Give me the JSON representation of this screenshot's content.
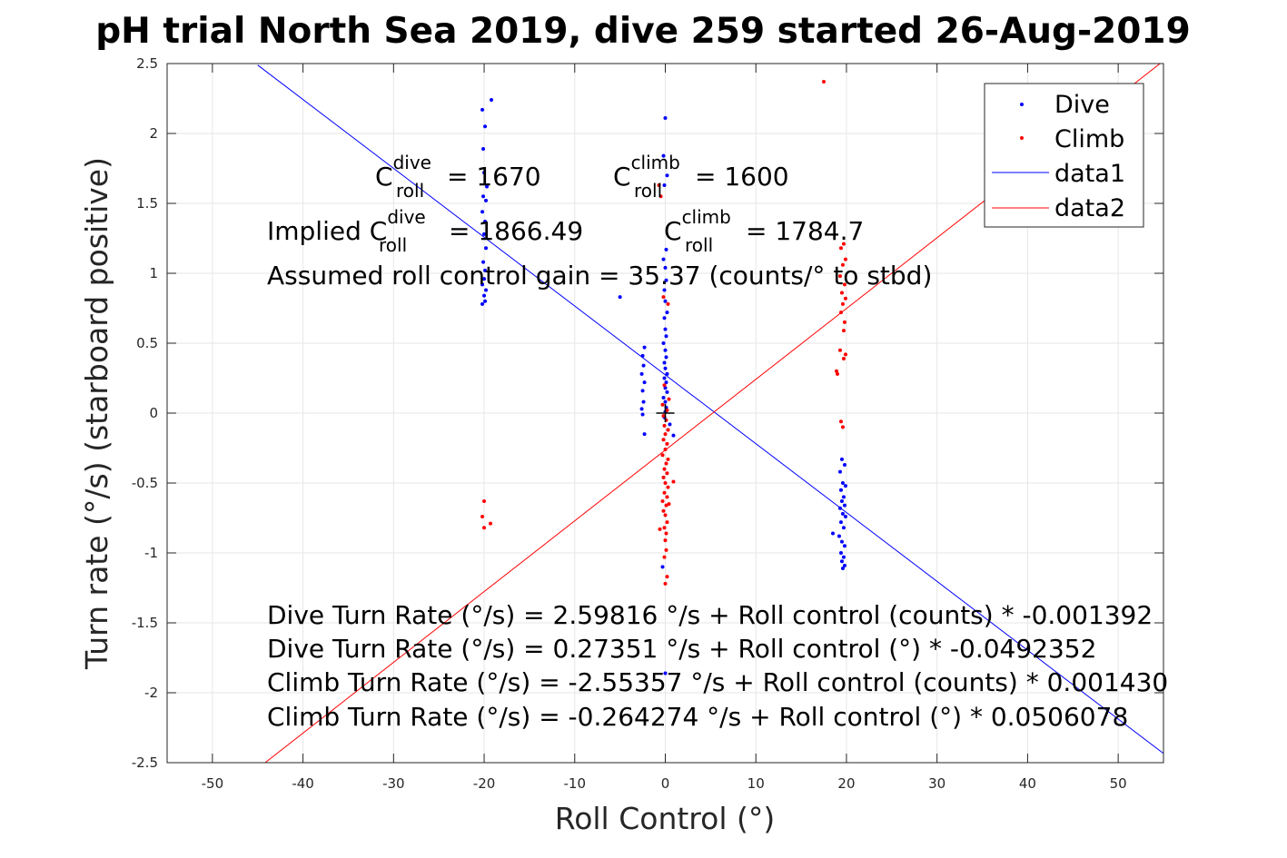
{
  "chart_data": {
    "type": "scatter",
    "title": "pH trial North Sea 2019, dive 259 started 26-Aug-2019",
    "xlabel": "Roll Control (°)",
    "ylabel": "Turn rate (°/s) (starboard positive)",
    "xlim": [
      -55,
      55
    ],
    "ylim": [
      -2.5,
      2.5
    ],
    "xticks": [
      -50,
      -40,
      -30,
      -20,
      -10,
      0,
      10,
      20,
      30,
      40,
      50
    ],
    "xtick_labels": [
      "-50",
      "-40",
      "-30",
      "-20",
      "-10",
      "0",
      "10",
      "20",
      "30",
      "40",
      "50"
    ],
    "yticks": [
      -2.5,
      -2,
      -1.5,
      -1,
      -0.5,
      0,
      0.5,
      1,
      1.5,
      2,
      2.5
    ],
    "ytick_labels": [
      "-2.5",
      "-2",
      "-1.5",
      "-1",
      "-0.5",
      "0",
      "0.5",
      "1",
      "1.5",
      "2",
      "2.5"
    ],
    "grid": true,
    "legend_position": "top-right",
    "legend": [
      "Dive",
      "Climb",
      "data1",
      "data2"
    ],
    "series": [
      {
        "name": "Dive",
        "color": "#0000ff",
        "marker": "dot",
        "points": [
          [
            -20.2,
            2.17
          ],
          [
            -19.9,
            2.05
          ],
          [
            -20.1,
            1.89
          ],
          [
            -20.0,
            1.72
          ],
          [
            -19.7,
            1.62
          ],
          [
            -20.1,
            1.55
          ],
          [
            -19.8,
            1.52
          ],
          [
            -20.2,
            1.44
          ],
          [
            -19.9,
            1.37
          ],
          [
            -20.0,
            1.28
          ],
          [
            -19.8,
            1.18
          ],
          [
            -20.1,
            1.08
          ],
          [
            -19.9,
            1.02
          ],
          [
            -20.0,
            0.96
          ],
          [
            -20.2,
            0.92
          ],
          [
            -19.8,
            0.88
          ],
          [
            -20.0,
            0.84
          ],
          [
            -19.9,
            0.8
          ],
          [
            -20.2,
            0.78
          ],
          [
            -19.2,
            2.24
          ],
          [
            -5.0,
            0.83
          ],
          [
            -2.3,
            0.47
          ],
          [
            -2.5,
            0.41
          ],
          [
            -2.4,
            0.34
          ],
          [
            -2.6,
            0.28
          ],
          [
            -2.3,
            0.22
          ],
          [
            -2.5,
            0.16
          ],
          [
            -2.4,
            0.08
          ],
          [
            -2.6,
            0.03
          ],
          [
            -2.5,
            -0.01
          ],
          [
            -2.3,
            -0.15
          ],
          [
            0.0,
            2.11
          ],
          [
            -0.2,
            1.84
          ],
          [
            0.2,
            1.7
          ],
          [
            -0.1,
            1.63
          ],
          [
            0.1,
            1.17
          ],
          [
            -0.2,
            1.1
          ],
          [
            0.0,
            1.04
          ],
          [
            0.1,
            0.95
          ],
          [
            -0.1,
            0.88
          ],
          [
            0.0,
            0.8
          ],
          [
            0.2,
            0.72
          ],
          [
            -0.1,
            0.68
          ],
          [
            0.0,
            0.6
          ],
          [
            0.1,
            0.55
          ],
          [
            -0.2,
            0.5
          ],
          [
            0.0,
            0.45
          ],
          [
            0.1,
            0.4
          ],
          [
            -0.1,
            0.36
          ],
          [
            0.0,
            0.32
          ],
          [
            0.2,
            0.28
          ],
          [
            -0.1,
            0.25
          ],
          [
            0.1,
            0.22
          ],
          [
            0.0,
            0.18
          ],
          [
            0.2,
            0.15
          ],
          [
            -0.2,
            0.11
          ],
          [
            0.0,
            0.08
          ],
          [
            0.1,
            0.04
          ],
          [
            0.0,
            0.01
          ],
          [
            -0.1,
            -0.03
          ],
          [
            0.5,
            -0.08
          ],
          [
            0.3,
            -0.12
          ],
          [
            0.9,
            -0.16
          ],
          [
            -0.3,
            -1.1
          ],
          [
            0.0,
            -1.86
          ],
          [
            19.5,
            -0.33
          ],
          [
            19.8,
            -0.37
          ],
          [
            19.3,
            -0.42
          ],
          [
            19.6,
            -0.5
          ],
          [
            19.9,
            -0.52
          ],
          [
            19.4,
            -0.55
          ],
          [
            19.7,
            -0.6
          ],
          [
            19.5,
            -0.63
          ],
          [
            19.8,
            -0.66
          ],
          [
            19.3,
            -0.68
          ],
          [
            19.6,
            -0.72
          ],
          [
            19.9,
            -0.74
          ],
          [
            19.4,
            -0.78
          ],
          [
            19.7,
            -0.82
          ],
          [
            19.2,
            -0.88
          ],
          [
            19.5,
            -0.92
          ],
          [
            19.8,
            -0.95
          ],
          [
            19.4,
            -1.0
          ],
          [
            19.7,
            -1.03
          ],
          [
            19.5,
            -1.06
          ],
          [
            19.8,
            -1.09
          ],
          [
            19.6,
            -1.11
          ],
          [
            18.5,
            -0.86
          ]
        ]
      },
      {
        "name": "Climb",
        "color": "#ff0000",
        "marker": "dot",
        "points": [
          [
            17.5,
            2.37
          ],
          [
            -20.0,
            -0.63
          ],
          [
            -20.2,
            -0.74
          ],
          [
            -20.0,
            -0.82
          ],
          [
            -19.3,
            -0.79
          ],
          [
            -0.7,
            1.63
          ],
          [
            -0.5,
            1.55
          ],
          [
            -0.2,
            0.83
          ],
          [
            0.3,
            0.78
          ],
          [
            -0.1,
            0.2
          ],
          [
            0.4,
            0.1
          ],
          [
            -0.3,
            0.06
          ],
          [
            0.2,
            0.02
          ],
          [
            -0.2,
            -0.02
          ],
          [
            0.1,
            -0.05
          ],
          [
            -0.1,
            -0.09
          ],
          [
            0.3,
            -0.12
          ],
          [
            0.0,
            -0.15
          ],
          [
            -0.2,
            -0.19
          ],
          [
            0.2,
            -0.22
          ],
          [
            0.0,
            -0.26
          ],
          [
            -0.3,
            -0.3
          ],
          [
            0.3,
            -0.33
          ],
          [
            0.1,
            -0.36
          ],
          [
            -0.1,
            -0.4
          ],
          [
            0.2,
            -0.43
          ],
          [
            -0.2,
            -0.46
          ],
          [
            0.0,
            -0.5
          ],
          [
            0.3,
            -0.53
          ],
          [
            -0.1,
            -0.57
          ],
          [
            0.2,
            -0.6
          ],
          [
            -0.3,
            -0.63
          ],
          [
            0.1,
            -0.66
          ],
          [
            0.4,
            -0.65
          ],
          [
            -0.2,
            -0.7
          ],
          [
            0.0,
            -0.73
          ],
          [
            0.2,
            -0.78
          ],
          [
            -0.1,
            -0.82
          ],
          [
            0.1,
            -0.86
          ],
          [
            0.0,
            -0.91
          ],
          [
            -0.6,
            -0.83
          ],
          [
            0.1,
            -0.98
          ],
          [
            -0.1,
            -1.03
          ],
          [
            0.2,
            -1.17
          ],
          [
            0.0,
            -1.22
          ],
          [
            0.9,
            -0.49
          ],
          [
            19.7,
            1.21
          ],
          [
            19.4,
            1.18
          ],
          [
            19.9,
            1.1
          ],
          [
            19.6,
            1.06
          ],
          [
            19.3,
            0.98
          ],
          [
            19.8,
            0.92
          ],
          [
            19.5,
            0.86
          ],
          [
            19.9,
            0.82
          ],
          [
            19.6,
            0.78
          ],
          [
            19.4,
            0.72
          ],
          [
            19.8,
            0.65
          ],
          [
            19.7,
            0.59
          ],
          [
            19.3,
            0.45
          ],
          [
            19.9,
            0.42
          ],
          [
            19.7,
            0.39
          ],
          [
            18.9,
            0.3
          ],
          [
            19.0,
            0.28
          ],
          [
            19.4,
            -0.06
          ],
          [
            19.6,
            -0.1
          ]
        ]
      },
      {
        "name": "data1",
        "color": "#0000ff",
        "marker": "line",
        "line": {
          "slope": -0.0492352,
          "intercept": 0.27351,
          "x_range": [
            -45,
            55
          ]
        }
      },
      {
        "name": "data2",
        "color": "#ff0000",
        "marker": "line",
        "line": {
          "slope": 0.0506078,
          "intercept": -0.264274,
          "x_range": [
            -46,
            55
          ]
        }
      }
    ],
    "crosshair": {
      "x": 0,
      "y": 0,
      "color": "#000000"
    },
    "annotations": {
      "c_dive": {
        "base": "C",
        "sup": "dive",
        "sub": "roll",
        "rest": " = 1670"
      },
      "c_climb": {
        "base": "C",
        "sup": "climb",
        "sub": "roll",
        "rest": " = 1600"
      },
      "implied_dive": {
        "prefix": "Implied C",
        "sup": "dive",
        "sub": "roll",
        "rest": " = 1866.49"
      },
      "implied_climb": {
        "base": "C",
        "sup": "climb",
        "sub": "roll",
        "rest": " = 1784.7"
      },
      "gain": "Assumed roll control gain = 35.37 (counts/° to stbd)",
      "eq1": "Dive Turn Rate (°/s) = 2.59816 °/s + Roll control (counts) * -0.001392",
      "eq2": "Dive Turn Rate (°/s) = 0.27351 °/s + Roll control (°) * -0.0492352",
      "eq3": "Climb Turn Rate (°/s) = -2.55357 °/s + Roll control (counts) * 0.001430",
      "eq4": "Climb Turn Rate (°/s) = -0.264274 °/s + Roll control (°) * 0.0506078"
    }
  }
}
